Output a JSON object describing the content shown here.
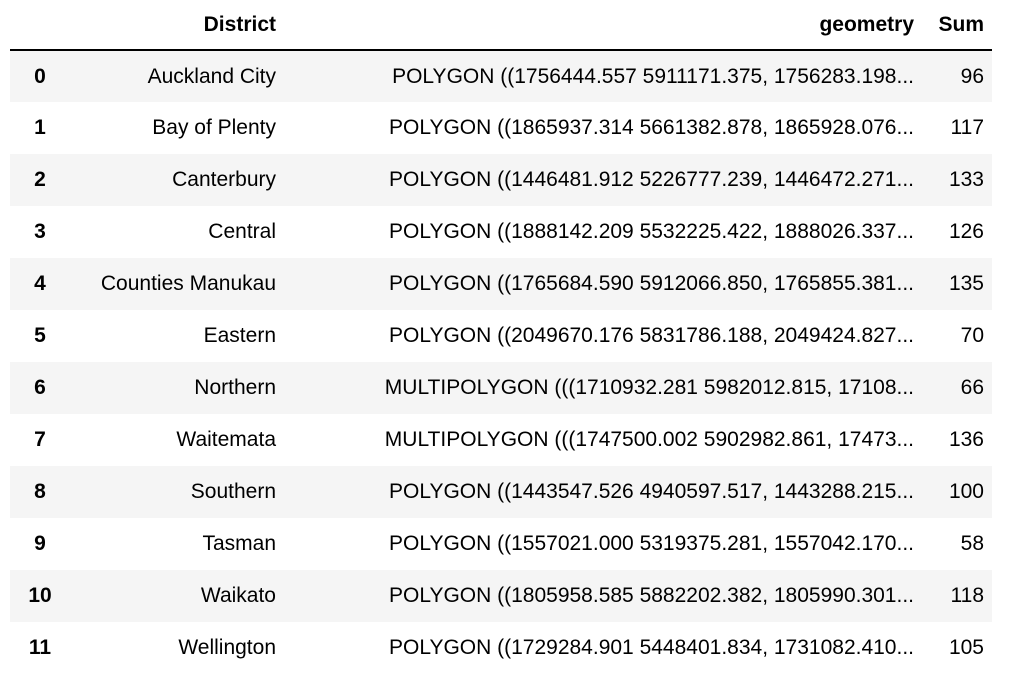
{
  "table": {
    "columns": [
      "",
      "District",
      "geometry",
      "Sum"
    ],
    "rows": [
      {
        "index": "0",
        "district": "Auckland City",
        "geometry": "POLYGON ((1756444.557 5911171.375, 1756283.198...",
        "sum": "96"
      },
      {
        "index": "1",
        "district": "Bay of Plenty",
        "geometry": "POLYGON ((1865937.314 5661382.878, 1865928.076...",
        "sum": "117"
      },
      {
        "index": "2",
        "district": "Canterbury",
        "geometry": "POLYGON ((1446481.912 5226777.239, 1446472.271...",
        "sum": "133"
      },
      {
        "index": "3",
        "district": "Central",
        "geometry": "POLYGON ((1888142.209 5532225.422, 1888026.337...",
        "sum": "126"
      },
      {
        "index": "4",
        "district": "Counties Manukau",
        "geometry": "POLYGON ((1765684.590 5912066.850, 1765855.381...",
        "sum": "135"
      },
      {
        "index": "5",
        "district": "Eastern",
        "geometry": "POLYGON ((2049670.176 5831786.188, 2049424.827...",
        "sum": "70"
      },
      {
        "index": "6",
        "district": "Northern",
        "geometry": "MULTIPOLYGON (((1710932.281 5982012.815, 17108...",
        "sum": "66"
      },
      {
        "index": "7",
        "district": "Waitemata",
        "geometry": "MULTIPOLYGON (((1747500.002 5902982.861, 17473...",
        "sum": "136"
      },
      {
        "index": "8",
        "district": "Southern",
        "geometry": "POLYGON ((1443547.526 4940597.517, 1443288.215...",
        "sum": "100"
      },
      {
        "index": "9",
        "district": "Tasman",
        "geometry": "POLYGON ((1557021.000 5319375.281, 1557042.170...",
        "sum": "58"
      },
      {
        "index": "10",
        "district": "Waikato",
        "geometry": "POLYGON ((1805958.585 5882202.382, 1805990.301...",
        "sum": "118"
      },
      {
        "index": "11",
        "district": "Wellington",
        "geometry": "POLYGON ((1729284.901 5448401.834, 1731082.410...",
        "sum": "105"
      }
    ]
  },
  "colors": {
    "stripe": "#f5f5f5",
    "header_rule": "#000000"
  }
}
